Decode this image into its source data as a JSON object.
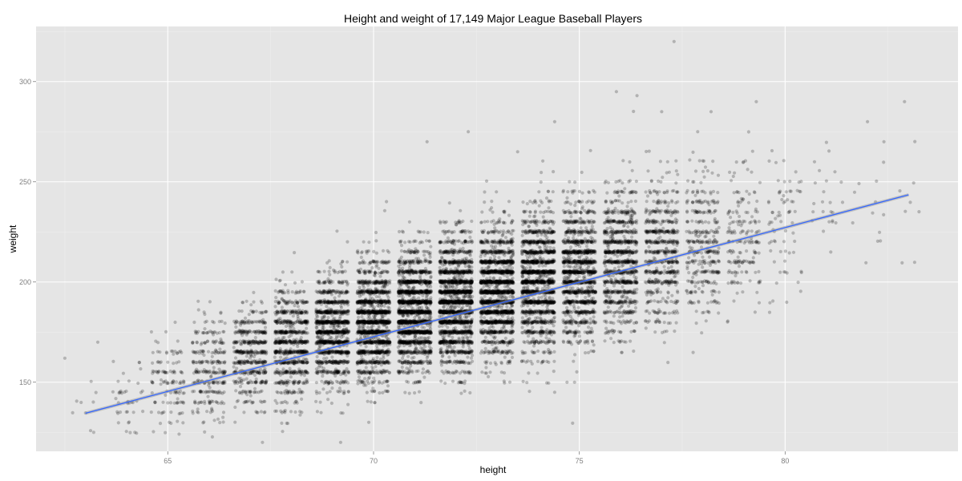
{
  "chart_data": {
    "type": "scatter",
    "title": "Height and weight of 17,149 Major League Baseball Players",
    "xlabel": "height",
    "ylabel": "weight",
    "xlim": [
      61.8,
      84.2
    ],
    "ylim": [
      115.5,
      327.5
    ],
    "x_ticks": [
      65,
      70,
      75,
      80
    ],
    "x_tick_labels": [
      "65",
      "70",
      "75",
      "80"
    ],
    "y_ticks": [
      150,
      200,
      250,
      300
    ],
    "y_tick_labels": [
      "150",
      "200",
      "250",
      "300"
    ],
    "grid": true,
    "legend": "none",
    "point_count": 17149,
    "point_summary": {
      "x_values_integer_inches": [
        63,
        64,
        65,
        66,
        67,
        68,
        69,
        70,
        71,
        72,
        73,
        74,
        75,
        76,
        77,
        78,
        79,
        80,
        81,
        82,
        83
      ],
      "relative_counts": [
        0.02,
        0.1,
        0.3,
        0.7,
        1.3,
        2.2,
        3.3,
        4.5,
        5.3,
        5.6,
        5.2,
        4.5,
        3.6,
        2.6,
        1.6,
        0.9,
        0.45,
        0.18,
        0.06,
        0.03,
        0.02
      ],
      "mean_weight": [
        136,
        143,
        150,
        157,
        163,
        169,
        175,
        180,
        185,
        190,
        195,
        200,
        205,
        210,
        214,
        218,
        222,
        228,
        232,
        237,
        243
      ],
      "weight_spread_sd": [
        10,
        11,
        12,
        12,
        12,
        13,
        13,
        14,
        14,
        15,
        15,
        16,
        16,
        17,
        17,
        18,
        18,
        18,
        18,
        18,
        18
      ]
    },
    "outliers": [
      {
        "x": 77.3,
        "y": 320
      },
      {
        "x": 75.9,
        "y": 295
      },
      {
        "x": 76.4,
        "y": 293
      },
      {
        "x": 79.3,
        "y": 290
      },
      {
        "x": 82.9,
        "y": 290
      },
      {
        "x": 77.0,
        "y": 285
      },
      {
        "x": 78.2,
        "y": 285
      },
      {
        "x": 82.0,
        "y": 280
      },
      {
        "x": 74.4,
        "y": 280
      },
      {
        "x": 72.3,
        "y": 275
      },
      {
        "x": 82.4,
        "y": 270
      },
      {
        "x": 73.5,
        "y": 265
      },
      {
        "x": 71.3,
        "y": 270
      },
      {
        "x": 62.5,
        "y": 162
      },
      {
        "x": 63.3,
        "y": 170
      },
      {
        "x": 63.2,
        "y": 125
      },
      {
        "x": 64.2,
        "y": 125
      },
      {
        "x": 67.3,
        "y": 120
      },
      {
        "x": 69.2,
        "y": 120
      },
      {
        "x": 74.4,
        "y": 145
      },
      {
        "x": 74.7,
        "y": 150
      }
    ],
    "fit_line": {
      "type": "linear",
      "x": [
        63,
        83
      ],
      "y": [
        134.5,
        243.5
      ]
    },
    "colors": {
      "panel_background": "#e5e5e5",
      "grid_major": "#ffffff",
      "grid_minor": "#f0f0f0",
      "point": "#000000",
      "fit_line": "#3366ff"
    }
  }
}
